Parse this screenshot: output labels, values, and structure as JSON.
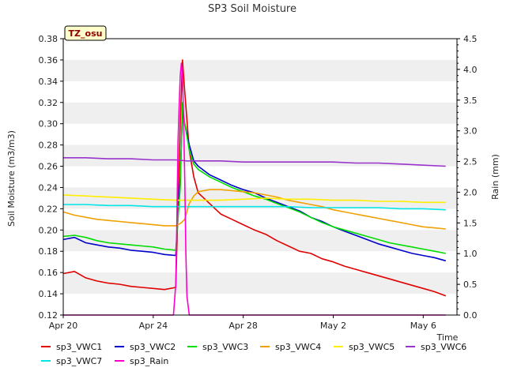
{
  "chart_data": {
    "type": "line",
    "title": "SP3 Soil Moisture",
    "badge": "TZ_osu",
    "xlabel": "Time",
    "ylabel": "Soil Moisture (m3/m3)",
    "y2label": "Rain (mm)",
    "x_ticks": [
      "Apr 20",
      "Apr 24",
      "Apr 28",
      "May 2",
      "May 6"
    ],
    "x_tick_days": [
      0,
      4,
      8,
      12,
      16
    ],
    "xlim": [
      0,
      17.5
    ],
    "ylim": [
      0.12,
      0.38
    ],
    "y_ticks": [
      "0.12",
      "0.14",
      "0.16",
      "0.18",
      "0.20",
      "0.22",
      "0.24",
      "0.26",
      "0.28",
      "0.30",
      "0.32",
      "0.34",
      "0.36",
      "0.38"
    ],
    "y2lim": [
      0,
      4.5
    ],
    "y2_ticks": [
      "0.0",
      "0.5",
      "1.0",
      "1.5",
      "2.0",
      "2.5",
      "3.0",
      "3.5",
      "4.0",
      "4.5"
    ],
    "grid": "horizontal bands",
    "legend_position": "bottom",
    "series": [
      {
        "name": "sp3_VWC1",
        "color": "#e00000",
        "axis": "left",
        "x": [
          0,
          0.5,
          1,
          1.5,
          2,
          2.5,
          3,
          3.5,
          4,
          4.5,
          5,
          5.2,
          5.3,
          5.4,
          5.6,
          5.8,
          6,
          6.5,
          7,
          7.5,
          8,
          8.5,
          9,
          9.5,
          10,
          10.5,
          11,
          11.5,
          12,
          12.5,
          13,
          13.5,
          14,
          14.5,
          15,
          15.5,
          16,
          16.5,
          17
        ],
        "y": [
          0.159,
          0.161,
          0.155,
          0.152,
          0.15,
          0.149,
          0.147,
          0.146,
          0.145,
          0.144,
          0.146,
          0.3,
          0.36,
          0.33,
          0.275,
          0.25,
          0.235,
          0.225,
          0.215,
          0.21,
          0.205,
          0.2,
          0.196,
          0.19,
          0.185,
          0.18,
          0.178,
          0.173,
          0.17,
          0.166,
          0.163,
          0.16,
          0.157,
          0.154,
          0.151,
          0.148,
          0.145,
          0.142,
          0.138
        ]
      },
      {
        "name": "sp3_VWC2",
        "color": "#0000cc",
        "axis": "left",
        "x": [
          0,
          0.5,
          1,
          1.5,
          2,
          2.5,
          3,
          3.5,
          4,
          4.5,
          5,
          5.2,
          5.3,
          5.4,
          5.6,
          5.8,
          6,
          6.5,
          7,
          7.5,
          8,
          8.5,
          9,
          9.5,
          10,
          10.5,
          11,
          11.5,
          12,
          12.5,
          13,
          13.5,
          14,
          14.5,
          15,
          15.5,
          16,
          16.5,
          17
        ],
        "y": [
          0.191,
          0.193,
          0.188,
          0.186,
          0.184,
          0.183,
          0.181,
          0.18,
          0.179,
          0.177,
          0.176,
          0.25,
          0.31,
          0.3,
          0.28,
          0.265,
          0.26,
          0.252,
          0.247,
          0.242,
          0.238,
          0.235,
          0.23,
          0.226,
          0.222,
          0.218,
          0.212,
          0.208,
          0.203,
          0.199,
          0.195,
          0.191,
          0.187,
          0.184,
          0.181,
          0.178,
          0.176,
          0.174,
          0.171
        ]
      },
      {
        "name": "sp3_VWC3",
        "color": "#00dd00",
        "axis": "left",
        "x": [
          0,
          0.5,
          1,
          1.5,
          2,
          2.5,
          3,
          3.5,
          4,
          4.5,
          5,
          5.2,
          5.3,
          5.4,
          5.6,
          5.8,
          6,
          6.5,
          7,
          7.5,
          8,
          8.5,
          9,
          9.5,
          10,
          10.5,
          11,
          11.5,
          12,
          12.5,
          13,
          13.5,
          14,
          14.5,
          15,
          15.5,
          16,
          16.5,
          17
        ],
        "y": [
          0.194,
          0.195,
          0.193,
          0.19,
          0.188,
          0.187,
          0.186,
          0.185,
          0.184,
          0.182,
          0.181,
          0.24,
          0.32,
          0.3,
          0.275,
          0.262,
          0.257,
          0.25,
          0.245,
          0.24,
          0.236,
          0.232,
          0.229,
          0.225,
          0.221,
          0.217,
          0.212,
          0.207,
          0.203,
          0.2,
          0.197,
          0.194,
          0.191,
          0.188,
          0.186,
          0.184,
          0.182,
          0.18,
          0.178
        ]
      },
      {
        "name": "sp3_VWC4",
        "color": "#f0a000",
        "axis": "left",
        "x": [
          0,
          0.5,
          1,
          1.5,
          2,
          2.5,
          3,
          3.5,
          4,
          4.5,
          5,
          5.2,
          5.4,
          5.6,
          5.8,
          6,
          6.5,
          7,
          7.5,
          8,
          8.5,
          9,
          9.5,
          10,
          10.5,
          11,
          11.5,
          12,
          12.5,
          13,
          13.5,
          14,
          14.5,
          15,
          15.5,
          16,
          16.5,
          17
        ],
        "y": [
          0.217,
          0.214,
          0.212,
          0.21,
          0.209,
          0.208,
          0.207,
          0.206,
          0.205,
          0.204,
          0.204,
          0.206,
          0.21,
          0.225,
          0.232,
          0.236,
          0.238,
          0.238,
          0.237,
          0.236,
          0.235,
          0.233,
          0.231,
          0.228,
          0.226,
          0.224,
          0.222,
          0.219,
          0.217,
          0.215,
          0.213,
          0.211,
          0.209,
          0.207,
          0.205,
          0.203,
          0.202,
          0.201
        ]
      },
      {
        "name": "sp3_VWC5",
        "color": "#ffee00",
        "axis": "left",
        "x": [
          0,
          1,
          2,
          3,
          4,
          5,
          5.5,
          6,
          7,
          8,
          9,
          10,
          11,
          12,
          13,
          14,
          15,
          16,
          17
        ],
        "y": [
          0.233,
          0.232,
          0.231,
          0.23,
          0.229,
          0.228,
          0.228,
          0.228,
          0.228,
          0.229,
          0.23,
          0.229,
          0.229,
          0.228,
          0.228,
          0.227,
          0.227,
          0.226,
          0.226
        ]
      },
      {
        "name": "sp3_VWC6",
        "color": "#9933cc",
        "axis": "left",
        "x": [
          0,
          1,
          2,
          3,
          4,
          5,
          5.5,
          6,
          7,
          8,
          9,
          10,
          11,
          12,
          13,
          14,
          15,
          16,
          17
        ],
        "y": [
          0.268,
          0.268,
          0.267,
          0.267,
          0.266,
          0.266,
          0.265,
          0.265,
          0.265,
          0.264,
          0.264,
          0.264,
          0.264,
          0.264,
          0.263,
          0.263,
          0.262,
          0.261,
          0.26
        ]
      },
      {
        "name": "sp3_VWC7",
        "color": "#00e5e5",
        "axis": "left",
        "x": [
          0,
          1,
          2,
          3,
          4,
          5,
          6,
          7,
          8,
          9,
          10,
          11,
          12,
          13,
          14,
          15,
          16,
          17
        ],
        "y": [
          0.224,
          0.224,
          0.223,
          0.223,
          0.222,
          0.222,
          0.222,
          0.222,
          0.222,
          0.222,
          0.222,
          0.221,
          0.221,
          0.221,
          0.221,
          0.22,
          0.22,
          0.219
        ]
      },
      {
        "name": "sp3_Rain",
        "color": "#ff00cc",
        "axis": "right",
        "x": [
          0,
          4.5,
          4.9,
          5.0,
          5.05,
          5.1,
          5.15,
          5.2,
          5.25,
          5.3,
          5.35,
          5.4,
          5.45,
          5.5,
          5.6,
          17
        ],
        "y": [
          0,
          0,
          0,
          0.5,
          1.5,
          2.8,
          3.4,
          3.9,
          4.1,
          3.9,
          3.2,
          2.2,
          1.0,
          0.3,
          0,
          0
        ]
      }
    ]
  }
}
